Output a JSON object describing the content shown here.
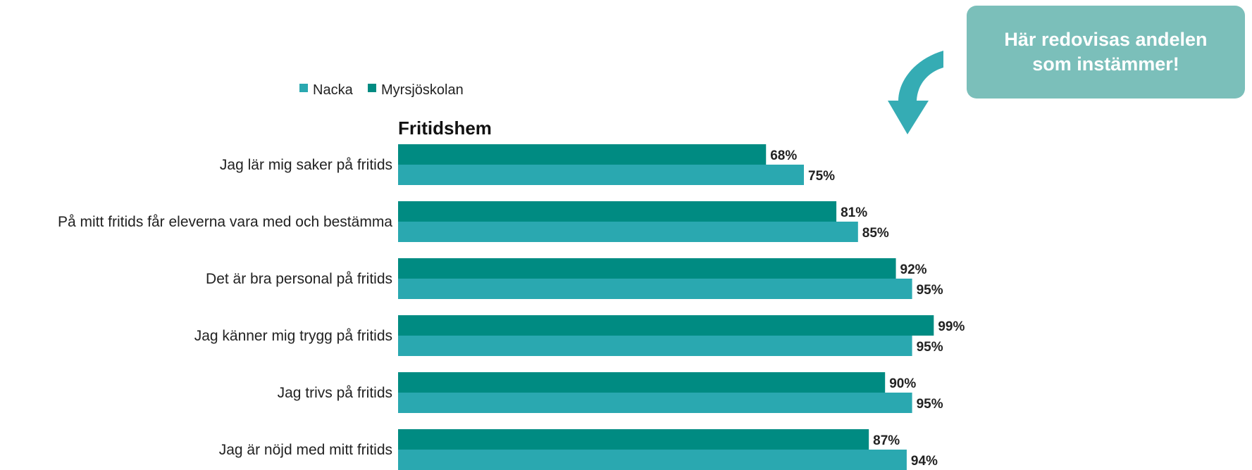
{
  "callout": {
    "text": "Här redovisas andelen som instämmer!"
  },
  "colors": {
    "nacka": "#2aa8b0",
    "myrsjoskolan": "#008b82",
    "callout_bg": "#7bbfba",
    "arrow": "#2aa8b0"
  },
  "chart_data": {
    "type": "bar",
    "orientation": "horizontal",
    "title": "Fritidshem",
    "legend": [
      "Nacka",
      "Myrsjöskolan"
    ],
    "legend_position": "top-left",
    "categories": [
      "Jag lär mig saker på fritids",
      "På mitt fritids får eleverna vara med och bestämma",
      "Det är bra personal på fritids",
      "Jag känner mig trygg på fritids",
      "Jag trivs på fritids",
      "Jag är nöjd med mitt fritids"
    ],
    "series": [
      {
        "name": "Myrsjöskolan",
        "values": [
          68,
          81,
          92,
          99,
          90,
          87
        ],
        "labels": [
          "68%",
          "81%",
          "92%",
          "99%",
          "90%",
          "87%"
        ]
      },
      {
        "name": "Nacka",
        "values": [
          75,
          85,
          95,
          95,
          95,
          94
        ],
        "labels": [
          "75%",
          "85%",
          "95%",
          "95%",
          "95%",
          "94%"
        ]
      }
    ],
    "xlim": [
      0,
      100
    ],
    "grid": false
  }
}
